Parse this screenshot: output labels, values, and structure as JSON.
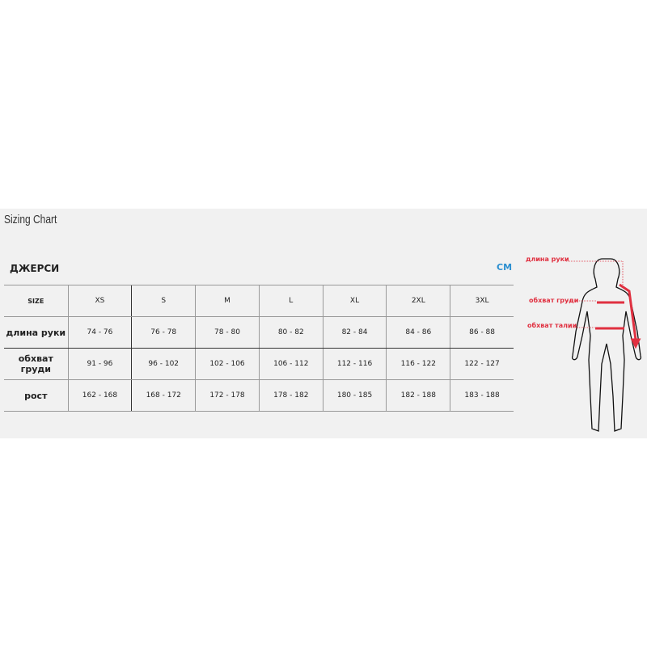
{
  "title": "Sizing Chart",
  "section": "ДЖЕРСИ",
  "unit": "CM",
  "table": {
    "header": [
      "SIZE",
      "XS",
      "S",
      "M",
      "L",
      "XL",
      "2XL",
      "3XL"
    ],
    "rows": [
      [
        "длина руки",
        "74 - 76",
        "76 - 78",
        "78 - 80",
        "80 - 82",
        "82 - 84",
        "84 - 86",
        "86 - 88"
      ],
      [
        "обхват груди",
        "91 - 96",
        "96 - 102",
        "102 - 106",
        "106 - 112",
        "112 - 116",
        "116 - 122",
        "122 - 127"
      ],
      [
        "рост",
        "162 - 168",
        "168 - 172",
        "172 - 178",
        "178 - 182",
        "180 - 185",
        "182 - 188",
        "183 - 188"
      ]
    ]
  },
  "figure": {
    "labels": [
      "длина руки",
      "обхват груди",
      "обхват талии"
    ],
    "accent": "#e03040"
  }
}
